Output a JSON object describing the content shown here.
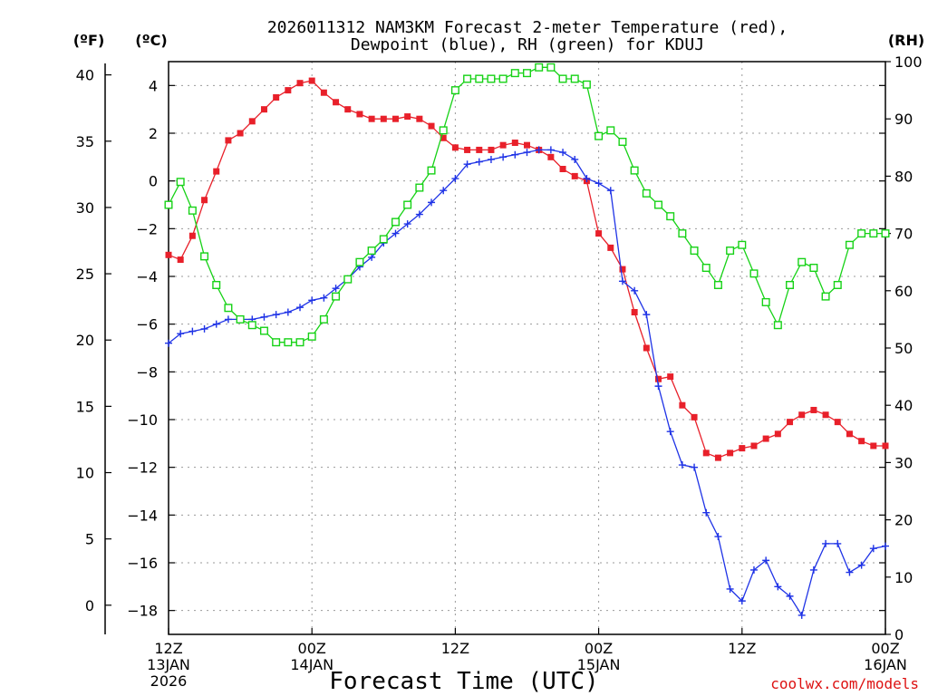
{
  "chart_data": {
    "type": "line",
    "title_line1": "2026011312 NAM3KM Forecast 2-meter Temperature (red),",
    "title_line2": "Dewpoint (blue), RH (green) for KDUJ",
    "unit_labels": {
      "fahrenheit": "(ºF)",
      "celsius": "(ºC)",
      "rh": "(RH)"
    },
    "xlabel": "Forecast Time (UTC)",
    "credit": "coolwx.com/models",
    "x_range": [
      0,
      60
    ],
    "x_ticks": [
      {
        "hour": 0,
        "line1": "12Z",
        "line2": "13JAN",
        "line3": "2026"
      },
      {
        "hour": 12,
        "line1": "00Z",
        "line2": "14JAN",
        "line3": ""
      },
      {
        "hour": 24,
        "line1": "12Z",
        "line2": "",
        "line3": ""
      },
      {
        "hour": 36,
        "line1": "00Z",
        "line2": "15JAN",
        "line3": ""
      },
      {
        "hour": 48,
        "line1": "12Z",
        "line2": "",
        "line3": ""
      },
      {
        "hour": 60,
        "line1": "00Z",
        "line2": "16JAN",
        "line3": ""
      }
    ],
    "celsius_axis": {
      "range": [
        -19,
        5
      ],
      "ticks": [
        "4",
        "2",
        "0",
        "−2",
        "−4",
        "−6",
        "−8",
        "−10",
        "−12",
        "−14",
        "−16",
        "−18"
      ],
      "tick_values": [
        4,
        2,
        0,
        -2,
        -4,
        -6,
        -8,
        -10,
        -12,
        -14,
        -16,
        -18
      ]
    },
    "fahrenheit_axis": {
      "ticks": [
        "40",
        "35",
        "30",
        "25",
        "20",
        "15",
        "10",
        "5",
        "0"
      ],
      "tick_values": [
        40,
        35,
        30,
        25,
        20,
        15,
        10,
        5,
        0
      ]
    },
    "rh_axis": {
      "range": [
        0,
        100
      ],
      "ticks": [
        "100",
        "90",
        "80",
        "70",
        "60",
        "50",
        "40",
        "30",
        "20",
        "10",
        "0"
      ],
      "tick_values": [
        100,
        90,
        80,
        70,
        60,
        50,
        40,
        30,
        20,
        10,
        0
      ]
    },
    "x_hours": [
      0,
      1,
      2,
      3,
      4,
      5,
      6,
      7,
      8,
      9,
      10,
      11,
      12,
      13,
      14,
      15,
      16,
      17,
      18,
      19,
      20,
      21,
      22,
      23,
      24,
      25,
      26,
      27,
      28,
      29,
      30,
      31,
      32,
      33,
      34,
      35,
      36,
      37,
      38,
      39,
      40,
      41,
      42,
      43,
      44,
      45,
      46,
      47,
      48,
      49,
      50,
      51,
      52,
      53,
      54,
      55,
      56,
      57,
      58,
      59,
      60
    ],
    "series": [
      {
        "name": "Temperature",
        "unit": "C",
        "color": "#e8202a",
        "marker": "filled-square",
        "values": [
          -3.1,
          -3.3,
          -2.3,
          -0.8,
          0.4,
          1.7,
          2.0,
          2.5,
          3.0,
          3.5,
          3.8,
          4.1,
          4.2,
          3.7,
          3.3,
          3.0,
          2.8,
          2.6,
          2.6,
          2.6,
          2.7,
          2.6,
          2.3,
          1.8,
          1.4,
          1.3,
          1.3,
          1.3,
          1.5,
          1.6,
          1.5,
          1.3,
          1.0,
          0.5,
          0.2,
          0.0,
          -2.2,
          -2.8,
          -3.7,
          -5.5,
          -7.0,
          -8.3,
          -8.2,
          -9.4,
          -9.9,
          -11.4,
          -11.6,
          -11.4,
          -11.2,
          -11.1,
          -10.8,
          -10.6,
          -10.1,
          -9.8,
          -9.6,
          -9.8,
          -10.1,
          -10.6,
          -10.9,
          -11.1,
          -11.1
        ]
      },
      {
        "name": "Dewpoint",
        "unit": "C",
        "color": "#1f33e6",
        "marker": "plus",
        "values": [
          -6.8,
          -6.4,
          -6.3,
          -6.2,
          -6.0,
          -5.8,
          -5.8,
          -5.8,
          -5.7,
          -5.6,
          -5.5,
          -5.3,
          -5.0,
          -4.9,
          -4.5,
          -4.1,
          -3.6,
          -3.2,
          -2.6,
          -2.2,
          -1.8,
          -1.4,
          -0.9,
          -0.4,
          0.1,
          0.7,
          0.8,
          0.9,
          1.0,
          1.1,
          1.2,
          1.3,
          1.3,
          1.2,
          0.9,
          0.1,
          -0.1,
          -0.4,
          -4.2,
          -4.6,
          -5.6,
          -8.6,
          -10.5,
          -11.9,
          -12.0,
          -13.9,
          -14.9,
          -17.1,
          -17.6,
          -16.3,
          -15.9,
          -17.0,
          -17.4,
          -18.2,
          -16.3,
          -15.2,
          -15.2,
          -16.4,
          -16.1,
          -15.4,
          -15.3
        ]
      },
      {
        "name": "RH",
        "unit": "%",
        "color": "#16d216",
        "marker": "open-square",
        "values": [
          75,
          79,
          74,
          66,
          61,
          57,
          55,
          54,
          53,
          51,
          51,
          51,
          52,
          55,
          59,
          62,
          65,
          67,
          69,
          72,
          75,
          78,
          81,
          88,
          95,
          97,
          97,
          97,
          97,
          98,
          98,
          99,
          99,
          97,
          97,
          96,
          87,
          88,
          86,
          81,
          77,
          75,
          73,
          70,
          67,
          64,
          61,
          67,
          68,
          63,
          58,
          54,
          61,
          65,
          64,
          59,
          61,
          68,
          70,
          70,
          70
        ]
      }
    ]
  }
}
